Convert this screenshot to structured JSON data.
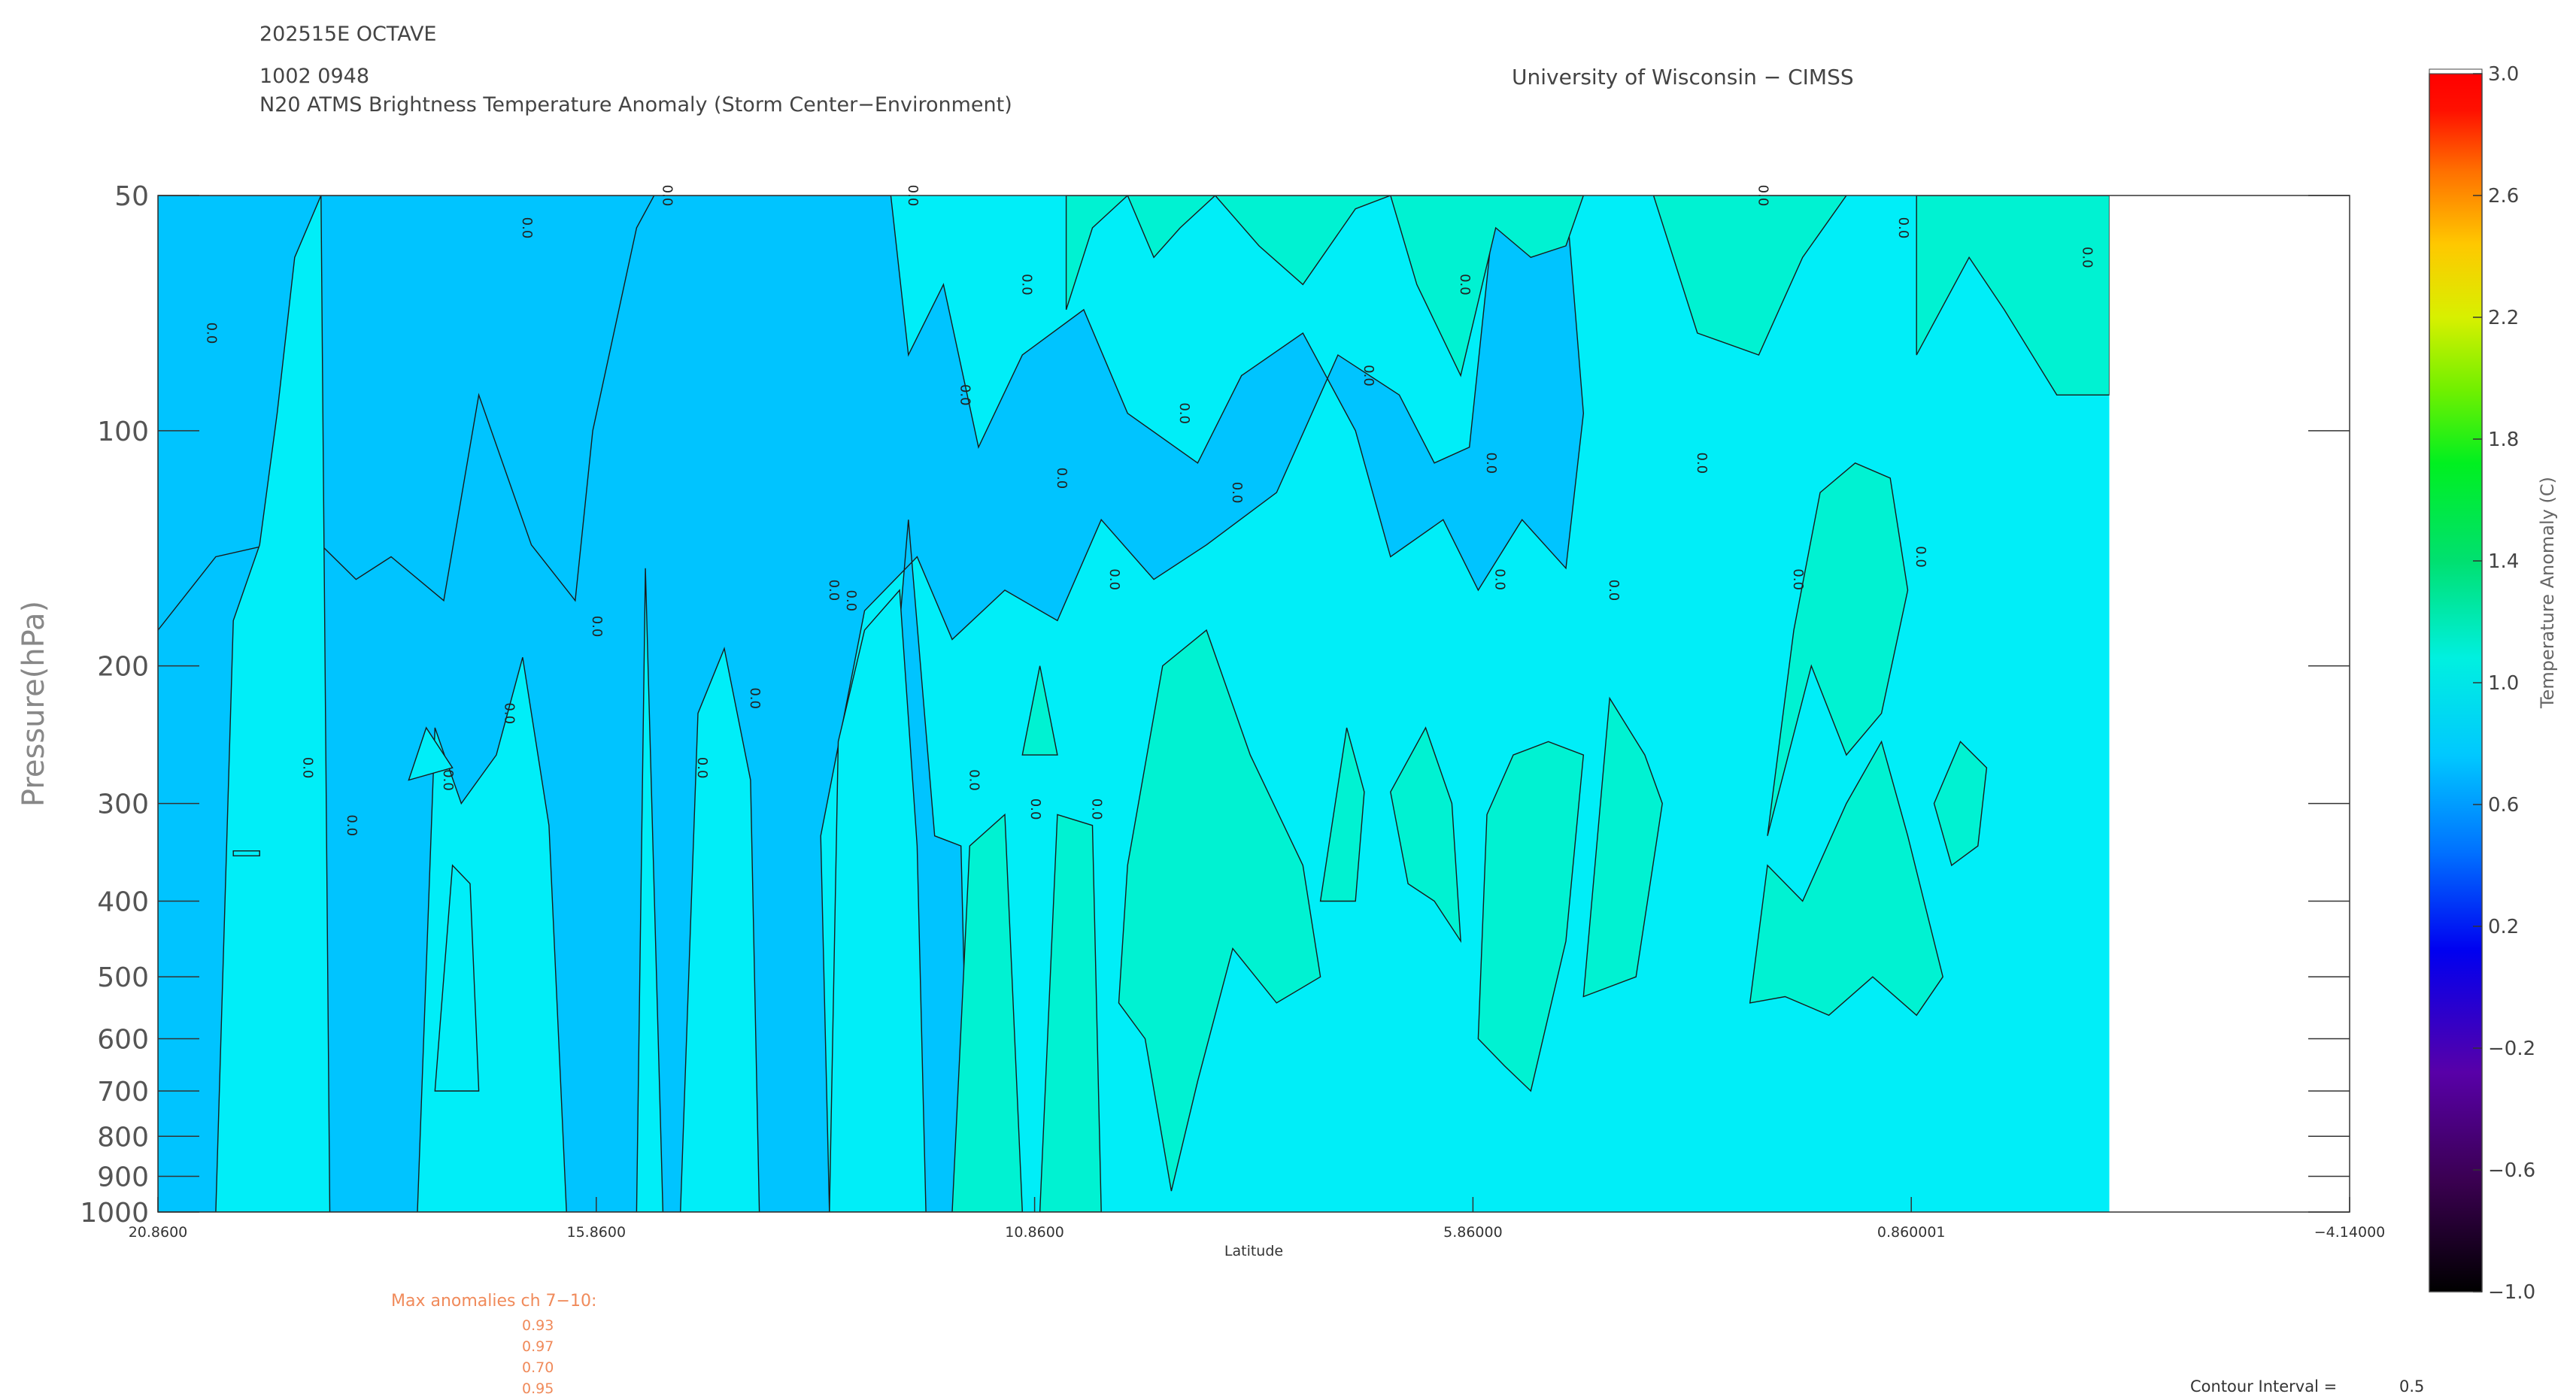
{
  "header": {
    "line1": "202515E OCTAVE",
    "line2": "1002 0948",
    "line3": "N20 ATMS Brightness Temperature Anomaly (Storm Center−Environment)",
    "institution": "University of Wisconsin − CIMSS"
  },
  "chart_data": {
    "type": "heatmap",
    "title": "N20 ATMS Brightness Temperature Anomaly (Storm Center−Environment)",
    "xlabel": "Latitude",
    "ylabel": "Pressure(hPa)",
    "x_ticks": [
      "20.8600",
      "15.8600",
      "10.8600",
      "5.86000",
      "0.860001",
      "−4.14000"
    ],
    "x_tick_values": [
      20.86,
      15.86,
      10.86,
      5.86,
      0.860001,
      -4.14
    ],
    "xlim": [
      20.86,
      -4.14
    ],
    "data_extent_x": [
      20.86,
      -1.4
    ],
    "y_ticks": [
      "50",
      "100",
      "200",
      "300",
      "400",
      "500",
      "600",
      "700",
      "800",
      "900",
      "1000"
    ],
    "y_tick_values": [
      50,
      100,
      200,
      300,
      400,
      500,
      600,
      700,
      800,
      900,
      1000
    ],
    "ylim": [
      1000,
      50
    ],
    "y_scale": "log",
    "colorbar": {
      "label": "Temperature Anomaly (C)",
      "ticks": [
        "3.0",
        "2.6",
        "2.2",
        "1.8",
        "1.4",
        "1.0",
        "0.6",
        "0.2",
        "−0.2",
        "−0.6",
        "−1.0"
      ],
      "tick_values": [
        3.0,
        2.6,
        2.2,
        1.8,
        1.4,
        1.0,
        0.6,
        0.2,
        -0.2,
        -0.6,
        -1.0
      ],
      "range": [
        -1.0,
        3.0
      ]
    },
    "contour_interval": 0.5,
    "fill_levels": [
      {
        "level": 0.5,
        "color": "#00c4ff"
      },
      {
        "level": 0.6,
        "color": "#00eef8"
      },
      {
        "level": 0.8,
        "color": "#00f2d2"
      }
    ],
    "contour_label": "0.0"
  },
  "max_anomalies": {
    "title": "Max anomalies ch 7−10:",
    "values": [
      "0.93",
      "0.97",
      "0.70",
      "0.95"
    ]
  },
  "footer": {
    "contour_interval_label": "Contour Interval =",
    "contour_interval_value": "0.5"
  },
  "colors": {
    "fill_low": "#00c4ff",
    "fill_mid": "#00eef8",
    "fill_high": "#00f2d2",
    "annotation": "#f08a5a"
  }
}
